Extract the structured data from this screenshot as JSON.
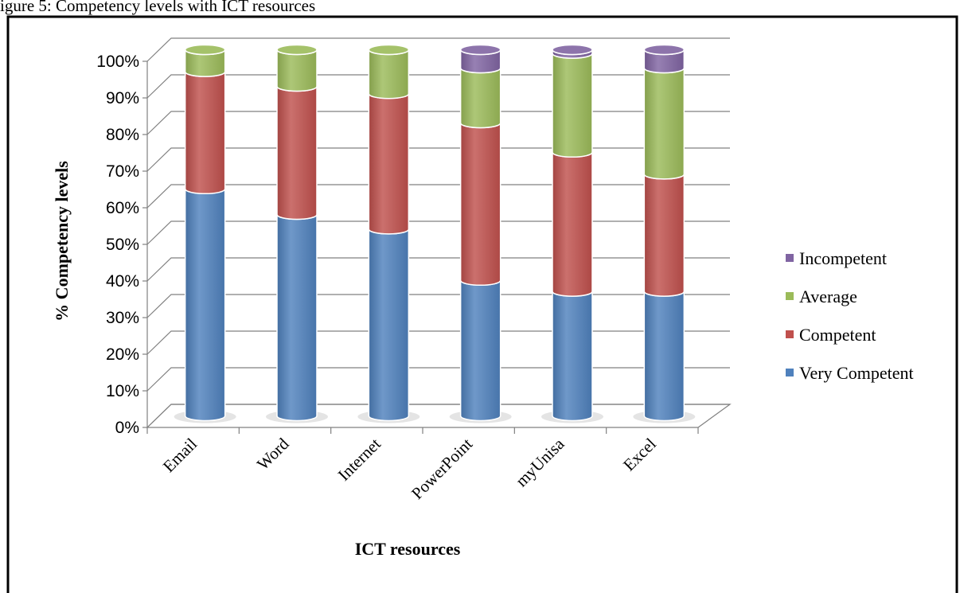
{
  "caption_fragment": "igure 5: Competency levels with ICT resources",
  "chart_data": {
    "type": "bar",
    "stacked": true,
    "style": "3d-cylinder",
    "categories": [
      "Email",
      "Word",
      "Internet",
      "PowerPoint",
      "myUnisa",
      "Excel"
    ],
    "series": [
      {
        "name": "Very Competent",
        "color": "#4f81bd",
        "values": [
          62,
          55,
          51,
          37,
          34,
          34
        ]
      },
      {
        "name": "Competent",
        "color": "#c0504d",
        "values": [
          32,
          35,
          37,
          43,
          38,
          32
        ]
      },
      {
        "name": "Average",
        "color": "#9bbb59",
        "values": [
          6,
          10,
          12,
          15,
          27,
          29
        ]
      },
      {
        "name": "Incompetent",
        "color": "#8064a2",
        "values": [
          0,
          0,
          0,
          5,
          1,
          5
        ]
      }
    ],
    "xlabel": "ICT resources",
    "ylabel": "% Competency  levels",
    "ylim": [
      0,
      100
    ],
    "yticks": [
      "0%",
      "10%",
      "20%",
      "30%",
      "40%",
      "50%",
      "60%",
      "70%",
      "80%",
      "90%",
      "100%"
    ],
    "grid": true,
    "legend_position": "right",
    "legend_order": [
      "Incompetent",
      "Average",
      "Competent",
      "Very Competent"
    ]
  }
}
